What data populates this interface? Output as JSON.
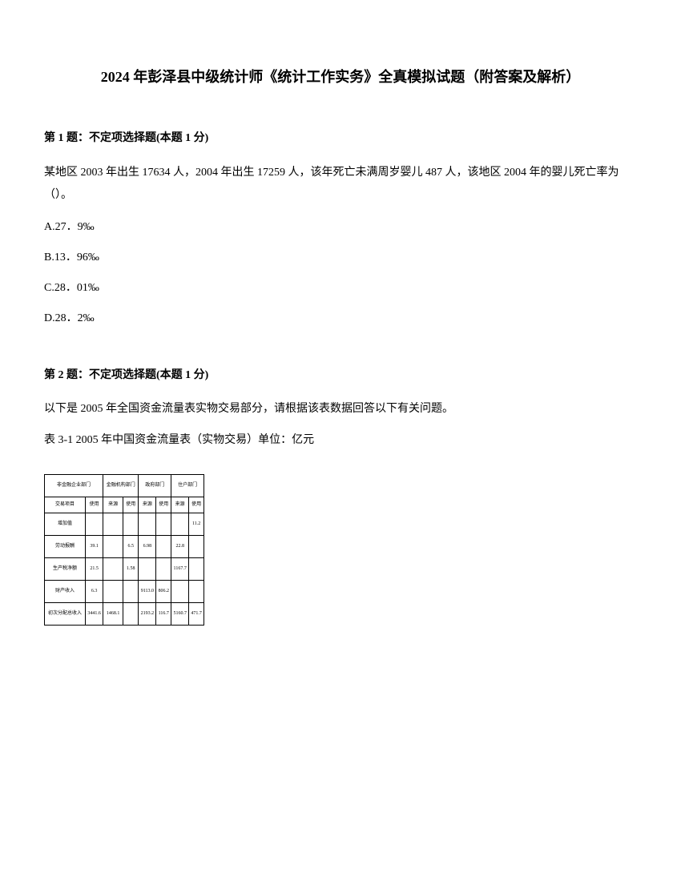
{
  "title": "2024 年彭泽县中级统计师《统计工作实务》全真模拟试题（附答案及解析）",
  "q1": {
    "header": "第 1 题：不定项选择题(本题 1 分)",
    "body": "某地区 2003 年出生 17634 人，2004 年出生 17259 人，该年死亡未满周岁婴儿 487 人，该地区 2004 年的婴儿死亡率为（）。",
    "optA": "A.27．9‰",
    "optB": "B.13．96‰",
    "optC": "C.28．01‰",
    "optD": "D.28．2‰"
  },
  "q2": {
    "header": "第 2 题：不定项选择题(本题 1 分)",
    "body": "以下是 2005 年全国资金流量表实物交易部分，请根据该表数据回答以下有关问题。",
    "caption": "表 3-1 2005 年中国资金流量表（实物交易）单位：亿元",
    "table": {
      "r1c1": "非金融企业部门",
      "r1c2": "金融机构部门",
      "r1c3": "政府部门",
      "r1c4": "住户部门",
      "r2c1": "交易项目",
      "r2c2": "使用",
      "r2c3": "来源",
      "r2c4": "使用",
      "r2c5": "来源",
      "r2c6": "使用",
      "r2c7": "来源",
      "r2c8": "使用",
      "r3c1": "增加值",
      "r3c2": "",
      "r3c3": "",
      "r3c4": "",
      "r3c5": "",
      "r3c6": "",
      "r3c7": "",
      "r3c8": "11.2",
      "r4c1": "劳动报酬",
      "r4c2": "39.1",
      "r4c3": "",
      "r4c4": "6.5",
      "r4c5": "6.98",
      "r4c6": "",
      "r4c7": "22.8",
      "r4c8": "",
      "r5c1": "生产税净额",
      "r5c2": "21.5",
      "r5c3": "",
      "r5c4": "1.58",
      "r5c5": "",
      "r5c6": "",
      "r5c7": "1167.7",
      "r5c8": "",
      "r6c1": "财产收入",
      "r6c2": "6.3",
      "r6c3": "",
      "r6c4": "",
      "r6c5": "9113.0",
      "r6c6": "806.2",
      "r6c7": "",
      "r6c8": "",
      "r7c1": "初次分配总收入",
      "r7c2": "3441.6",
      "r7c3": "1468.1",
      "r7c4": "",
      "r7c5": "2193.2",
      "r7c6": "116.7",
      "r7c7": "5160.7",
      "r7c8": "471.7"
    }
  }
}
